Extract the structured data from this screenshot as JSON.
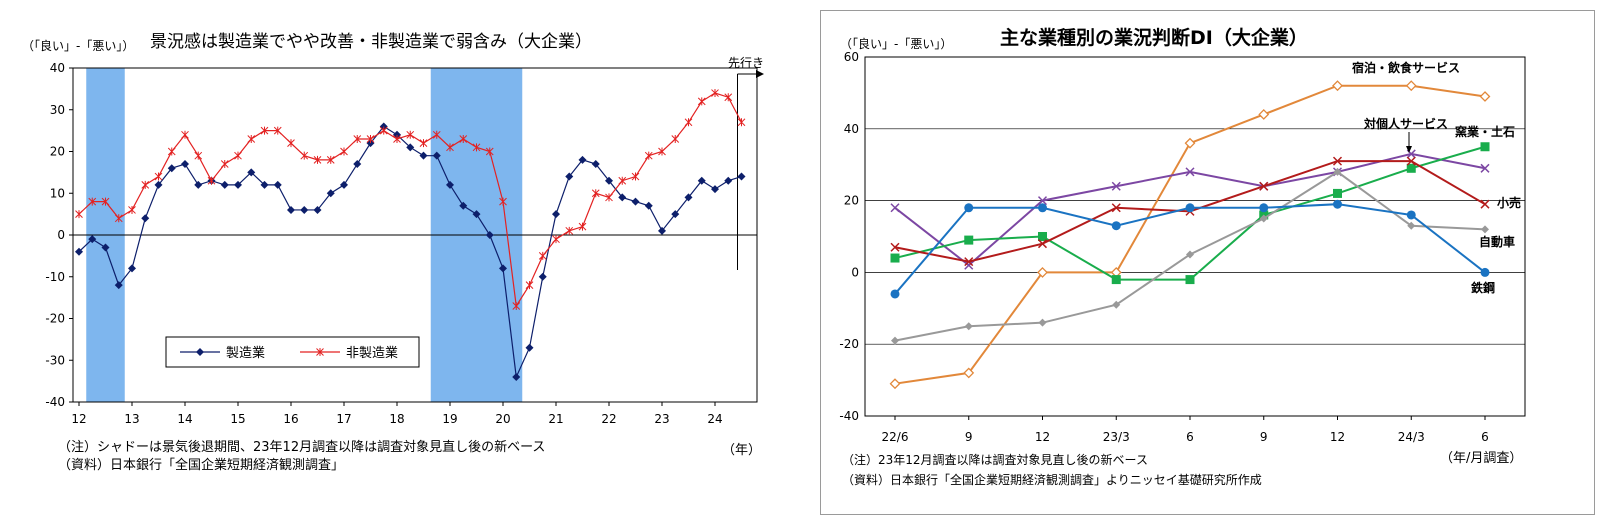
{
  "left": {
    "unit_label": "（「良い」-「悪い」）",
    "title": "景況感は製造業でやや改善・非製造業で弱含み（大企業）",
    "forecast_label": "先行き",
    "year_label": "（年）",
    "note1": "（注）シャドーは景気後退期間、23年12月調査以降は調査対象見直し後の新ベース",
    "note2": "（資料）日本銀行「全国企業短期経済観測調査」"
  },
  "right": {
    "unit_label": "（「良い」-「悪い」）",
    "title": "主な業種別の業況判断DI（大企業）",
    "period_label": "（年/月調査）",
    "note1": "（注）23年12月調査以降は調査対象見直し後の新ベース",
    "note2": "（資料）日本銀行「全国企業短期経済観測調査」よりニッセイ基礎研究所作成"
  },
  "chart_data": [
    {
      "type": "line",
      "title": "景況感は製造業でやや改善・非製造業で弱含み（大企業）",
      "ylabel": "（「良い」-「悪い」）",
      "xlabel": "（年）",
      "ylim": [
        -40,
        40
      ],
      "yticks": [
        "40",
        "30",
        "20",
        "10",
        "0",
        "-10",
        "-20",
        "-30",
        "-40"
      ],
      "xticks": [
        "12",
        "13",
        "14",
        "15",
        "16",
        "17",
        "18",
        "19",
        "20",
        "21",
        "22",
        "23",
        "24"
      ],
      "x_start": "2012/Q1",
      "frequency": "quarterly",
      "shaded_periods": [
        [
          "2012/Q2",
          "2012/Q4"
        ],
        [
          "2018/Q4",
          "2020/Q2"
        ]
      ],
      "forecast_marker": "先行き",
      "grid": false,
      "legend": "bottom-left",
      "colors": {
        "manufacturing": "#0d1f6b",
        "nonmanufacturing": "#e32222",
        "shade": "#7eb6ee"
      },
      "series": [
        {
          "name": "製造業",
          "marker": "diamond",
          "values": [
            -4,
            -1,
            -3,
            -12,
            -8,
            4,
            12,
            16,
            17,
            12,
            13,
            12,
            12,
            15,
            12,
            12,
            6,
            6,
            6,
            10,
            12,
            17,
            22,
            26,
            24,
            21,
            19,
            19,
            12,
            7,
            5,
            0,
            -8,
            -34,
            -27,
            -10,
            5,
            14,
            18,
            17,
            13,
            9,
            8,
            7,
            1,
            5,
            9,
            13,
            11,
            13,
            14
          ]
        },
        {
          "name": "非製造業",
          "marker": "asterisk",
          "values": [
            5,
            8,
            8,
            4,
            6,
            12,
            14,
            20,
            24,
            19,
            13,
            17,
            19,
            23,
            25,
            25,
            22,
            19,
            18,
            18,
            20,
            23,
            23,
            25,
            23,
            24,
            22,
            24,
            21,
            23,
            21,
            20,
            8,
            -17,
            -12,
            -5,
            -1,
            1,
            2,
            10,
            9,
            13,
            14,
            19,
            20,
            23,
            27,
            32,
            34,
            33,
            27
          ]
        }
      ]
    },
    {
      "type": "line",
      "title": "主な業種別の業況判断DI（大企業）",
      "ylabel": "（「良い」-「悪い」）",
      "xlabel": "（年/月調査）",
      "ylim": [
        -40,
        60
      ],
      "yticks": [
        "60",
        "40",
        "20",
        "0",
        "-20",
        "-40"
      ],
      "categories": [
        "22/6",
        "9",
        "12",
        "23/3",
        "6",
        "9",
        "12",
        "24/3",
        "6"
      ],
      "grid": true,
      "series": [
        {
          "name": "宿泊・飲食サービス",
          "color": "#e2883a",
          "marker": "diamond-open",
          "values": [
            -31,
            -28,
            0,
            0,
            36,
            44,
            52,
            52,
            49
          ]
        },
        {
          "name": "対個人サービス",
          "color": "#7c47a3",
          "marker": "x",
          "values": [
            18,
            2,
            20,
            24,
            28,
            24,
            28,
            33,
            29
          ]
        },
        {
          "name": "窯業・土石",
          "color": "#19ad4c",
          "marker": "square",
          "values": [
            4,
            9,
            10,
            -2,
            -2,
            16,
            22,
            29,
            35
          ]
        },
        {
          "name": "小売",
          "color": "#b31b1b",
          "marker": "x",
          "values": [
            7,
            3,
            8,
            18,
            17,
            24,
            31,
            31,
            19
          ]
        },
        {
          "name": "自動車",
          "color": "#999999",
          "marker": "diamond",
          "values": [
            -19,
            -15,
            -14,
            -9,
            5,
            15,
            28,
            13,
            12
          ]
        },
        {
          "name": "鉄鋼",
          "color": "#1a73c2",
          "marker": "circle",
          "values": [
            -6,
            18,
            18,
            13,
            18,
            18,
            19,
            16,
            0
          ]
        }
      ]
    }
  ]
}
